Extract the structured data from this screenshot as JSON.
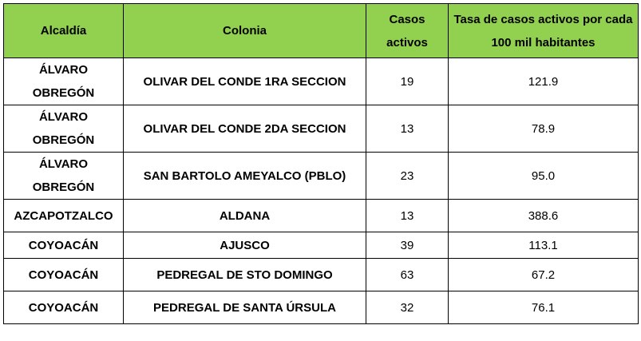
{
  "table": {
    "headers": [
      "Alcaldía",
      "Colonia",
      "Casos activos",
      "Tasa de casos activos por cada 100 mil habitantes"
    ],
    "rows": [
      {
        "alcaldia": "ÁLVARO OBREGÓN",
        "colonia": "OLIVAR DEL CONDE 1RA SECCION",
        "casos": "19",
        "tasa": "121.9"
      },
      {
        "alcaldia": "ÁLVARO OBREGÓN",
        "colonia": "OLIVAR DEL CONDE 2DA SECCION",
        "casos": "13",
        "tasa": "78.9"
      },
      {
        "alcaldia": "ÁLVARO OBREGÓN",
        "colonia": "SAN BARTOLO AMEYALCO (PBLO)",
        "casos": "23",
        "tasa": "95.0"
      },
      {
        "alcaldia": "AZCAPOTZALCO",
        "colonia": "ALDANA",
        "casos": "13",
        "tasa": "388.6"
      },
      {
        "alcaldia": "COYOACÁN",
        "colonia": "AJUSCO",
        "casos": "39",
        "tasa": "113.1"
      },
      {
        "alcaldia": "COYOACÁN",
        "colonia": "PEDREGAL DE STO DOMINGO",
        "casos": "63",
        "tasa": "67.2"
      },
      {
        "alcaldia": "COYOACÁN",
        "colonia": "PEDREGAL DE SANTA ÚRSULA",
        "casos": "32",
        "tasa": "76.1"
      }
    ],
    "header_color": "#92d050",
    "border_color": "#000000"
  }
}
